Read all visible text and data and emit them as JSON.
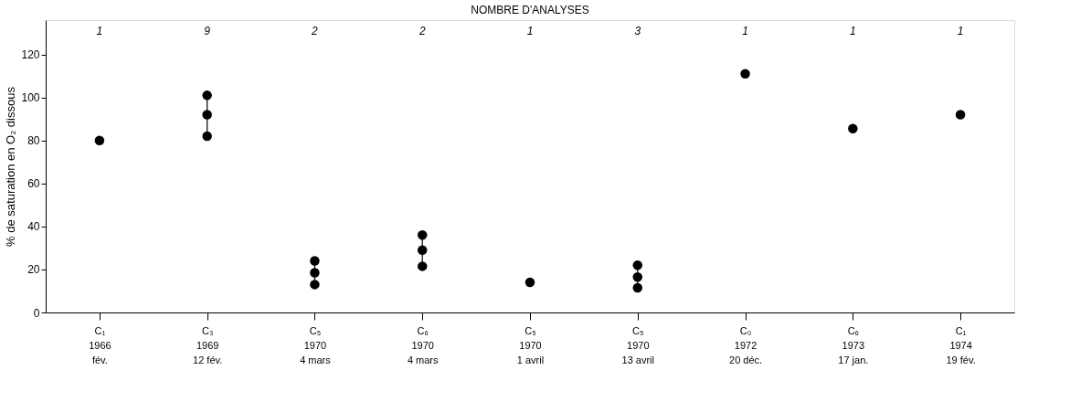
{
  "chart_data": {
    "type": "scatter",
    "title": "NOMBRE D'ANALYSES",
    "ylabel": "% de saturation en O₂ dissous",
    "categories": [
      "C₁\n1966\nfév.",
      "C₃\n1969\n12 fév.",
      "C₅\n1970\n4 mars",
      "C₆\n1970\n4 mars",
      "C₅\n1970\n1 avril",
      "C₅\n1970\n13 avril",
      "C₀\n1972\n20 déc.",
      "C₆\n1973\n17 jan.",
      "C₁\n1974\n19 fév."
    ],
    "series": [
      {
        "color": "#000000",
        "x": [
          "C₁\n1966\nfév.",
          "C₅\n1970\n1 avril",
          "C₀\n1972\n20 déc.",
          "C₆\n1973\n17 jan.",
          "C₁\n1974\n19 fév."
        ],
        "values": [
          80,
          14,
          111,
          85.5,
          92
        ]
      },
      {
        "type": "line",
        "color": "#000000",
        "x": [
          "C₃\n1969\n12 fév.",
          "C₃\n1969\n12 fév.",
          "C₃\n1969\n12 fév."
        ],
        "values": [
          82,
          92,
          101
        ]
      },
      {
        "type": "line",
        "color": "#000000",
        "x": [
          "C₅\n1970\n4 mars",
          "C₅\n1970\n4 mars",
          "C₅\n1970\n4 mars"
        ],
        "values": [
          13,
          18.5,
          24
        ]
      },
      {
        "type": "line",
        "color": "#000000",
        "x": [
          "C₆\n1970\n4 mars",
          "C₆\n1970\n4 mars",
          "C₆\n1970\n4 mars"
        ],
        "values": [
          21.5,
          29,
          36
        ]
      },
      {
        "type": "line",
        "color": "#000000",
        "x": [
          "C₅\n1970\n13 avril",
          "C₅\n1970\n13 avril",
          "C₅\n1970\n13 avril"
        ],
        "values": [
          11.5,
          16.5,
          22
        ]
      }
    ],
    "ylim": [
      0,
      136
    ],
    "yticks": [
      0,
      20,
      40,
      60,
      80,
      100,
      120
    ],
    "grid": false,
    "marker": "circle",
    "annotations": [
      "1",
      "9",
      "2",
      "2",
      "1",
      "3",
      "1",
      "1",
      "1"
    ]
  }
}
